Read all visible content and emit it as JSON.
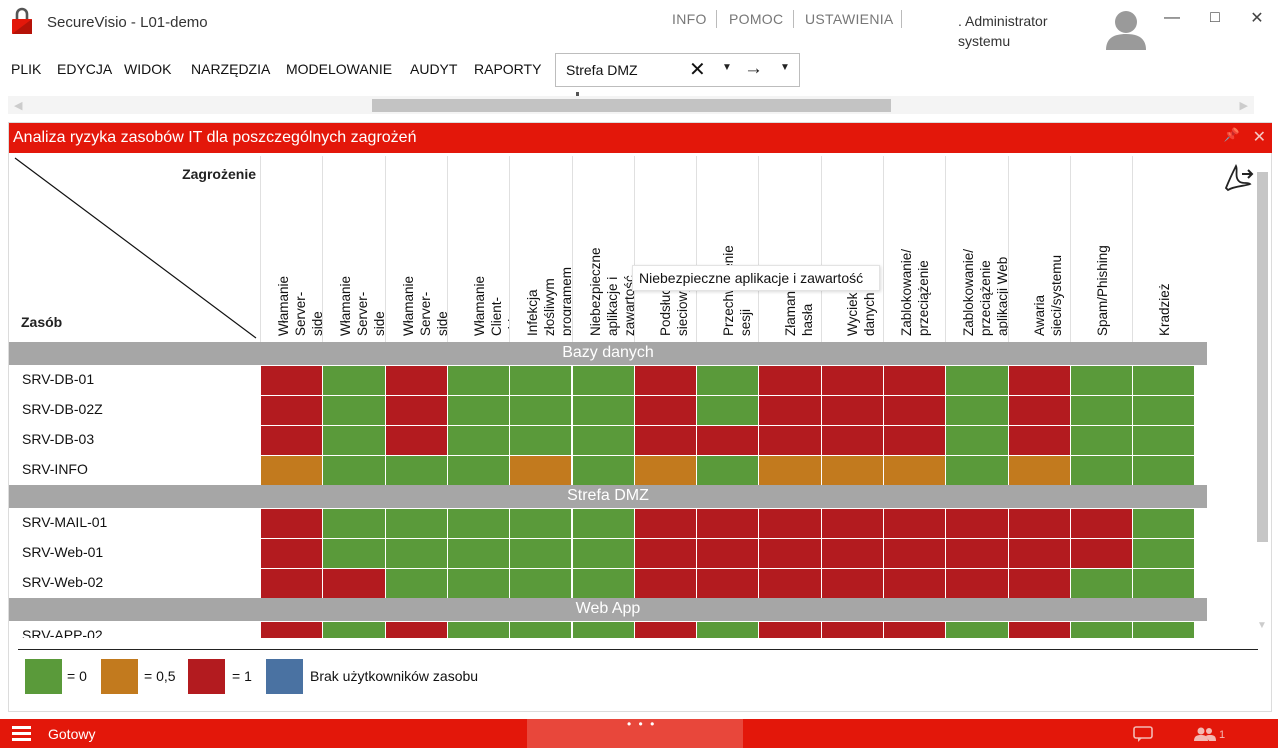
{
  "app": {
    "title": "SecureVisio - L01-demo",
    "top_menu": [
      "INFO",
      "POMOC",
      "USTAWIENIA"
    ],
    "user_name": ". Administrator systemu"
  },
  "menubar": {
    "items": [
      "PLIK",
      "EDYCJA",
      "WIDOK",
      "NARZĘDZIA",
      "MODELOWANIE",
      "AUDYT",
      "RAPORTY"
    ]
  },
  "context": {
    "value": "Strefa DMZ"
  },
  "panel": {
    "title": "Analiza ryzyka zasobów IT dla poszczególnych zagrożeń"
  },
  "matrix": {
    "corner_threat_label": "Zagrożenie",
    "corner_asset_label": "Zasób",
    "threats": [
      "Włamanie Server-side\n(Exploit)",
      "Włamanie Server-side\n(Web)",
      "Włamanie Server-side\n(Database)",
      "Włamanie Client-side",
      "Infekcja złośliwym\nprogramem",
      "Niebezpieczne aplikacje i\nzawartość",
      "Podsłuch sieciowy",
      "Przechwycenie sesji",
      "Złamanie hasła",
      "Wyciek danych",
      "Zablokowanie/\nprzeciążenie",
      "Zablokowanie/\nprzeciążenie aplikacji Web",
      "Awaria sieci/systemu",
      "Spam/Phishing",
      "Kradzież"
    ],
    "groups": [
      {
        "name": "Bazy danych",
        "rows": [
          {
            "asset": "SRV-DB-01",
            "values": [
              1,
              0,
              1,
              0,
              0,
              0,
              1,
              0,
              1,
              1,
              1,
              0,
              1,
              0,
              0
            ]
          },
          {
            "asset": "SRV-DB-02Z",
            "values": [
              1,
              0,
              1,
              0,
              0,
              0,
              1,
              0,
              1,
              1,
              1,
              0,
              1,
              0,
              0
            ]
          },
          {
            "asset": "SRV-DB-03",
            "values": [
              1,
              0,
              1,
              0,
              0,
              0,
              1,
              1,
              1,
              1,
              1,
              0,
              1,
              0,
              0
            ]
          },
          {
            "asset": "SRV-INFO",
            "values": [
              0.5,
              0,
              0,
              0,
              0.5,
              0,
              0.5,
              0,
              0.5,
              0.5,
              0.5,
              0,
              0.5,
              0,
              0
            ]
          }
        ]
      },
      {
        "name": "Strefa DMZ",
        "rows": [
          {
            "asset": "SRV-MAIL-01",
            "values": [
              1,
              0,
              0,
              0,
              0,
              0,
              1,
              1,
              1,
              1,
              1,
              1,
              1,
              1,
              0
            ]
          },
          {
            "asset": "SRV-Web-01",
            "values": [
              1,
              0,
              0,
              0,
              0,
              0,
              1,
              1,
              1,
              1,
              1,
              1,
              1,
              1,
              0
            ]
          },
          {
            "asset": "SRV-Web-02",
            "values": [
              1,
              1,
              0,
              0,
              0,
              0,
              1,
              1,
              1,
              1,
              1,
              1,
              1,
              0,
              0
            ]
          }
        ]
      },
      {
        "name": "Web App",
        "rows": [
          {
            "asset": "SRV-APP-02",
            "values": [
              1,
              0,
              1,
              0,
              0,
              0,
              1,
              0,
              1,
              1,
              1,
              0,
              1,
              0,
              0
            ]
          }
        ]
      }
    ]
  },
  "tooltip": {
    "text": "Niebezpieczne aplikacje i zawartość"
  },
  "legend": {
    "items": [
      {
        "label": "= 0",
        "color": "#5a9a3a"
      },
      {
        "label": "= 0,5",
        "color": "#c27a1e"
      },
      {
        "label": "= 1",
        "color": "#b31b1f"
      },
      {
        "label": "Brak użytkowników zasobu",
        "color": "#4a72a2"
      }
    ]
  },
  "colors": {
    "value_0": "#5a9a3a",
    "value_0.5": "#c27a1e",
    "value_1": "#b31b1f",
    "accent": "#e3170a"
  },
  "status": {
    "text": "Gotowy",
    "center_dots": "• • •",
    "users_count": "1"
  }
}
